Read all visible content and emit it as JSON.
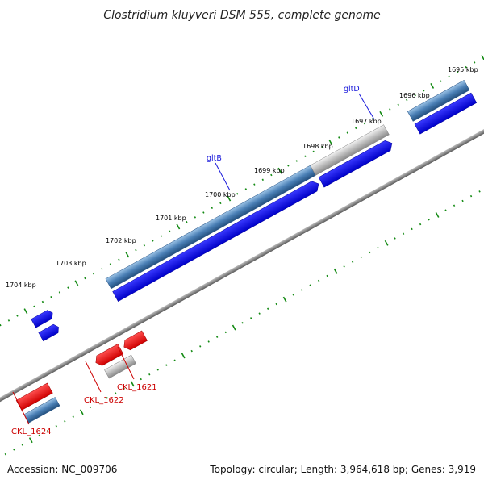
{
  "title": "Clostridium kluyveri DSM 555, complete genome",
  "footer": {
    "accession": "Accession: NC_009706",
    "topology": "Topology: circular; Length: 3,964,618 bp; Genes: 3,919"
  },
  "kbp_labels": [
    "1695 kbp",
    "1696 kbp",
    "1697 kbp",
    "1698 kbp",
    "1699 kbp",
    "1700 kbp",
    "1701 kbp",
    "1702 kbp",
    "1703 kbp",
    "1704 kbp"
  ],
  "gene_labels": {
    "gltD": "gltD",
    "gltB": "gltB",
    "ckl1621": "CKL_1621",
    "ckl1622": "CKL_1622",
    "ckl1624": "CKL_1624"
  },
  "colors": {
    "forward_cds": "#0000ee",
    "reverse_cds": "#ee0000",
    "gene_forward": "#4a7fb5",
    "gene_reverse": "#b8b8b8",
    "backbone": "#888888",
    "ticks": "#138a13"
  }
}
